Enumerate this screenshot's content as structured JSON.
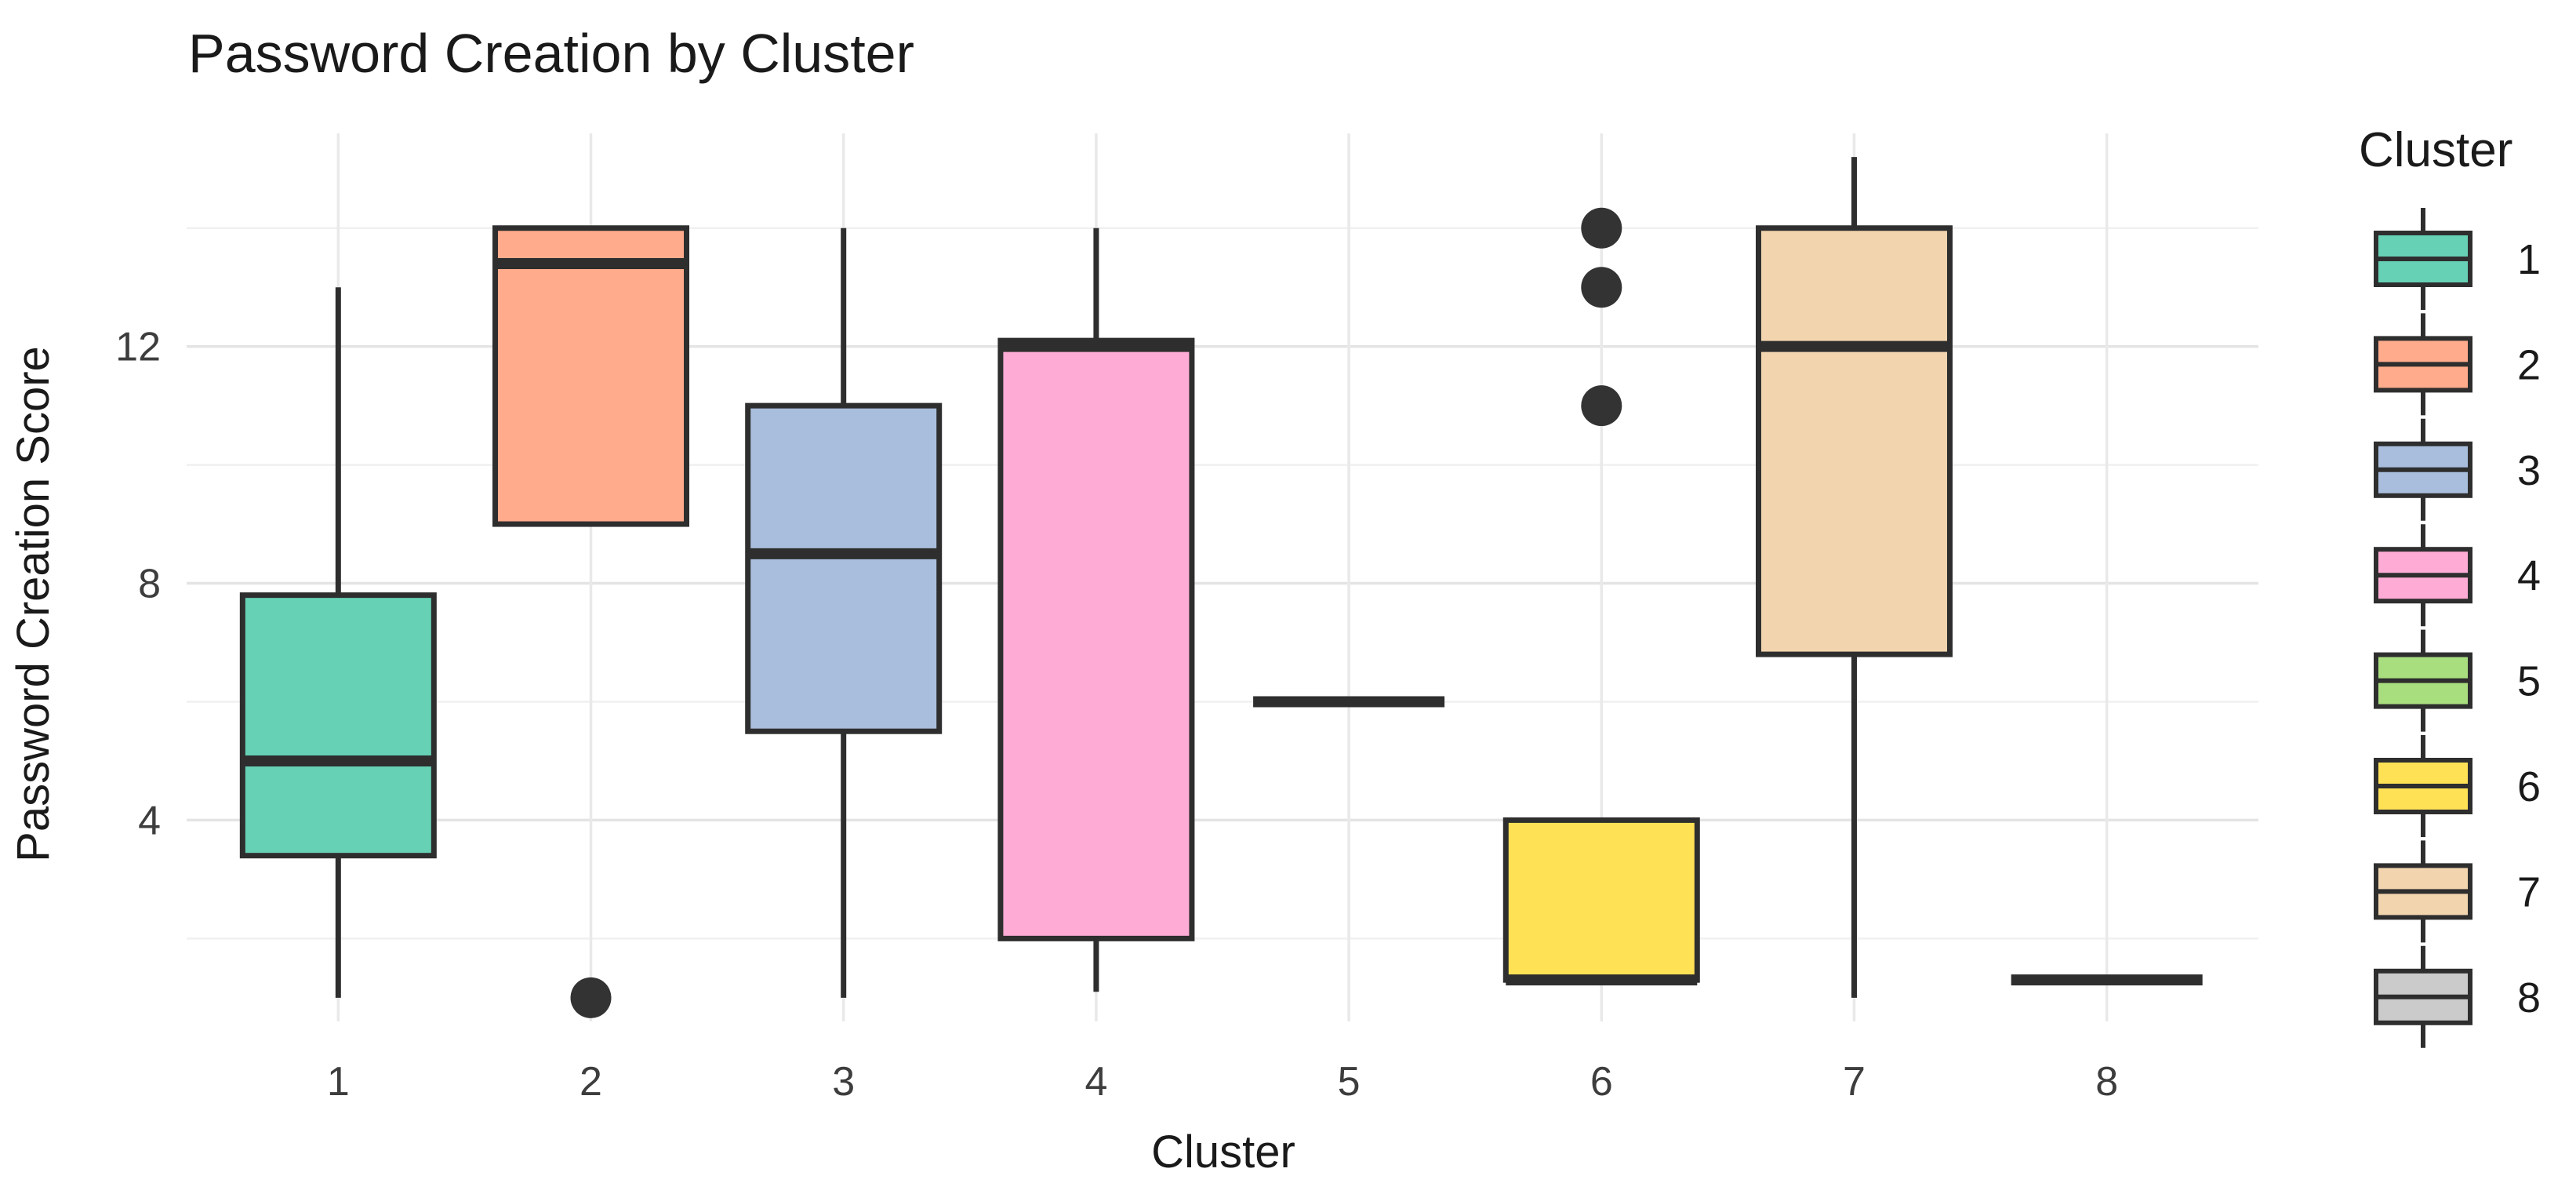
{
  "title": "Password Creation by Cluster",
  "x_axis": {
    "label": "Cluster",
    "tick_labels": [
      "1",
      "2",
      "3",
      "4",
      "5",
      "6",
      "7",
      "8"
    ]
  },
  "y_axis": {
    "label": "Password Creation Score",
    "tick_labels": [
      "4",
      "8",
      "12"
    ]
  },
  "legend": {
    "title": "Cluster",
    "entries": [
      {
        "label": "1",
        "color": "#66D1B5"
      },
      {
        "label": "2",
        "color": "#FFAB8C"
      },
      {
        "label": "3",
        "color": "#A9BEDD"
      },
      {
        "label": "4",
        "color": "#FEACD5"
      },
      {
        "label": "5",
        "color": "#A9DE7E"
      },
      {
        "label": "6",
        "color": "#FFE155"
      },
      {
        "label": "7",
        "color": "#F2D5AF"
      },
      {
        "label": "8",
        "color": "#CBCBCB"
      }
    ]
  },
  "chart_data": {
    "type": "boxplot",
    "title": "Password Creation by Cluster",
    "xlabel": "Cluster",
    "ylabel": "Password Creation Score",
    "categories": [
      "1",
      "2",
      "3",
      "4",
      "5",
      "6",
      "7",
      "8"
    ],
    "ylim": [
      0.6,
      15.6
    ],
    "yticks": [
      4,
      8,
      12
    ],
    "grid": {
      "horizontal_major": [
        4,
        8,
        12
      ],
      "horizontal_minor": [
        2,
        6,
        10,
        14
      ],
      "vertical_at_categories": true
    },
    "legend_position": "right",
    "series": [
      {
        "cluster": "1",
        "color": "#66D1B5",
        "whisker_low": 1,
        "q1": 3.4,
        "median": 5,
        "q3": 7.8,
        "whisker_high": 13,
        "outliers": []
      },
      {
        "cluster": "2",
        "color": "#FFAB8C",
        "whisker_low": 9,
        "q1": 9,
        "median": 13.4,
        "q3": 14,
        "whisker_high": 14,
        "outliers": [
          1
        ]
      },
      {
        "cluster": "3",
        "color": "#A9BEDD",
        "whisker_low": 1,
        "q1": 5.5,
        "median": 8.5,
        "q3": 11,
        "whisker_high": 14,
        "outliers": []
      },
      {
        "cluster": "4",
        "color": "#FEACD5",
        "whisker_low": 1.1,
        "q1": 2,
        "median": 12,
        "q3": 12.1,
        "whisker_high": 14,
        "outliers": []
      },
      {
        "cluster": "5",
        "color": "#A9DE7E",
        "whisker_low": 6,
        "q1": 6,
        "median": 6,
        "q3": 6,
        "whisker_high": 6,
        "outliers": []
      },
      {
        "cluster": "6",
        "color": "#FFE155",
        "whisker_low": 1.3,
        "q1": 1.3,
        "median": 1.3,
        "q3": 4,
        "whisker_high": 4,
        "outliers": [
          11,
          13,
          14
        ]
      },
      {
        "cluster": "7",
        "color": "#F2D5AF",
        "whisker_low": 1,
        "q1": 6.8,
        "median": 12,
        "q3": 14,
        "whisker_high": 15.2,
        "outliers": []
      },
      {
        "cluster": "8",
        "color": "#CBCBCB",
        "whisker_low": 1.3,
        "q1": 1.3,
        "median": 1.3,
        "q3": 1.3,
        "whisker_high": 1.3,
        "outliers": []
      }
    ]
  },
  "colors": {
    "box_stroke": "#2E2E2E",
    "median_stroke": "#2E2E2E",
    "outlier_fill": "#333333",
    "grid_major": "#E4E4E4",
    "grid_minor": "#F0F0F0",
    "grid_vertical": "#E9E9E9",
    "background": "#FFFFFF"
  }
}
